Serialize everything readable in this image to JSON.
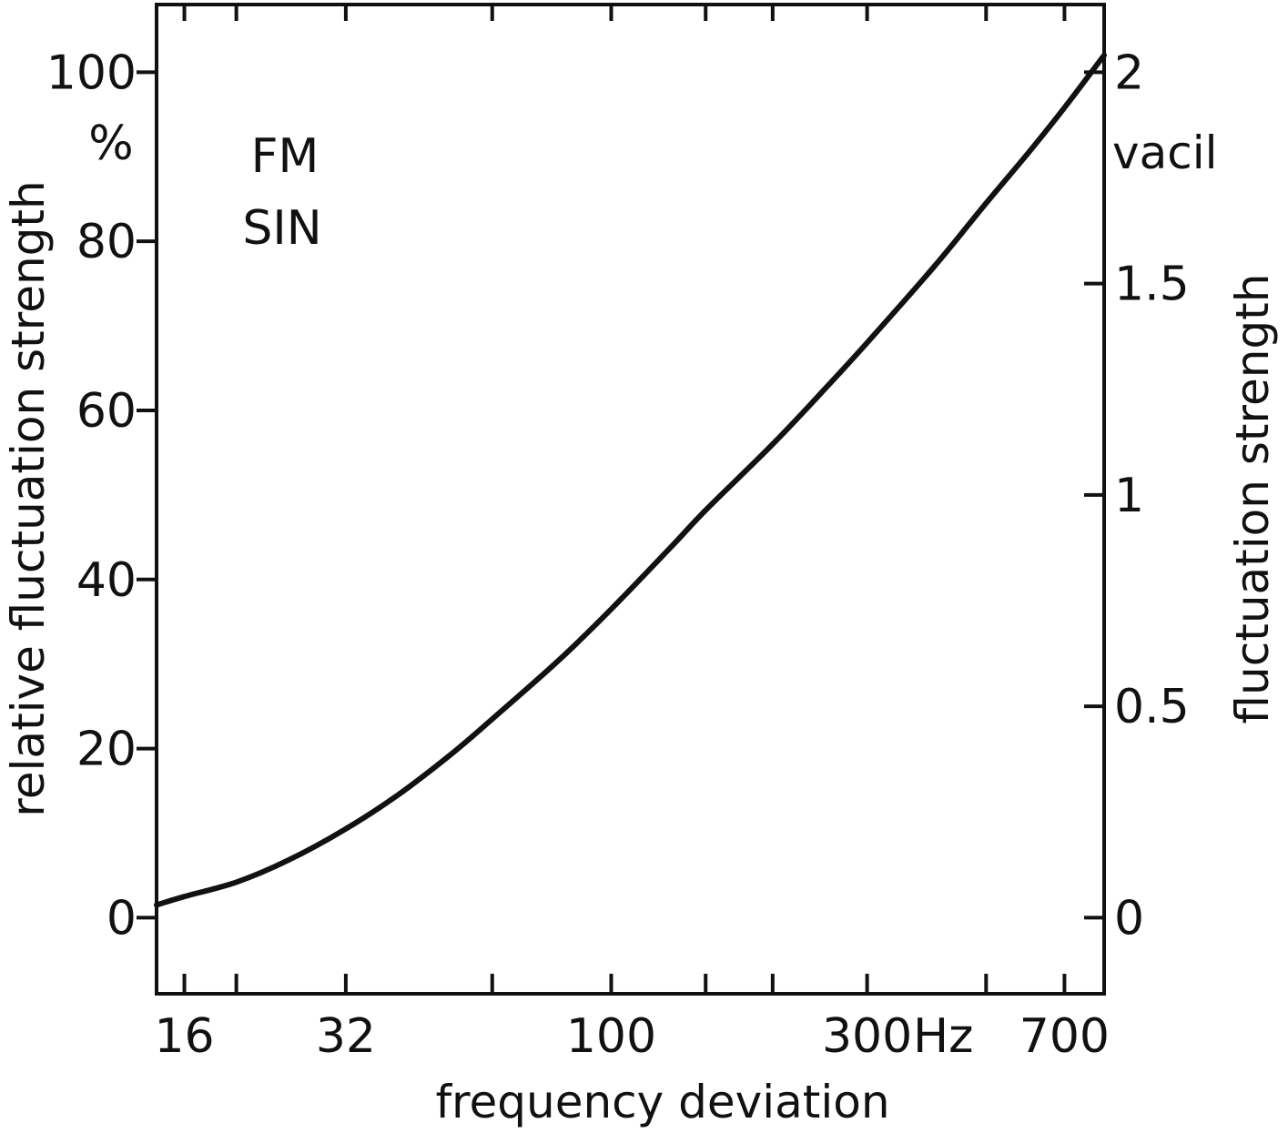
{
  "chart_data": {
    "type": "line",
    "title": "",
    "annotations": [
      "FM",
      "SIN"
    ],
    "xlabel": "frequency deviation",
    "xscale": "log",
    "xlim": [
      14.2,
      830
    ],
    "x_ticks": [
      16,
      20,
      32,
      60,
      100,
      150,
      200,
      300,
      500,
      700
    ],
    "x_tick_labels": [
      {
        "value": 16,
        "label": "16"
      },
      {
        "value": 32,
        "label": "32"
      },
      {
        "value": 100,
        "label": "100"
      },
      {
        "value": 300,
        "label": "300"
      },
      {
        "value": 700,
        "label": "700"
      }
    ],
    "x_unit": "Hz",
    "ylabel": "relative fluctuation strength",
    "y_unit": "%",
    "ylim": [
      -9,
      108
    ],
    "y_ticks": [
      0,
      20,
      40,
      60,
      80,
      100
    ],
    "y_tick_labels": [
      "0",
      "20",
      "40",
      "60",
      "80",
      "100"
    ],
    "y2label": "fluctuation strength",
    "y2_unit": "vacil",
    "y2lim": [
      -0.18,
      2.16
    ],
    "y2_ticks": [
      0,
      0.5,
      1,
      1.5,
      2
    ],
    "y2_tick_labels": [
      "0",
      "0.5",
      "1",
      "1.5",
      "2"
    ],
    "grid": false,
    "legend": "none",
    "series": [
      {
        "x": [
          14.2,
          16,
          20,
          25,
          32,
          40,
          50,
          60,
          80,
          100,
          130,
          150,
          200,
          250,
          300,
          400,
          500,
          600,
          700,
          830
        ],
        "y": [
          1.5,
          2.5,
          4.2,
          6.8,
          10.5,
          14.5,
          19.2,
          23.5,
          30.5,
          36.5,
          44.0,
          48.2,
          56.0,
          62.5,
          68.0,
          77.0,
          84.5,
          90.5,
          95.8,
          102.0
        ]
      }
    ]
  }
}
